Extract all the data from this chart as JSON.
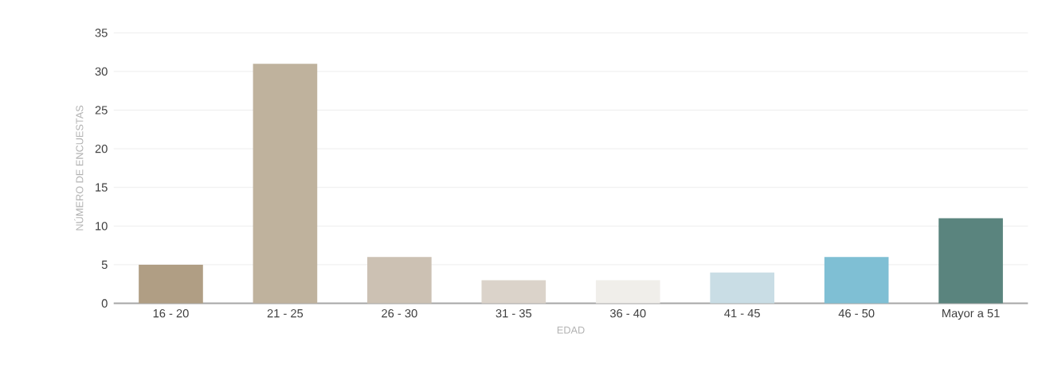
{
  "chart_data": {
    "type": "bar",
    "xlabel": "EDAD",
    "ylabel": "NÚMERO DE ENCUESTAS",
    "categories": [
      "16 - 20",
      "21 - 25",
      "26 - 30",
      "31 - 35",
      "36 - 40",
      "41 - 45",
      "46 - 50",
      "Mayor a 51"
    ],
    "values": [
      5,
      31,
      6,
      3,
      3,
      4,
      6,
      11
    ],
    "colors": [
      "#b09e84",
      "#bfb29d",
      "#ccc1b3",
      "#dbd3ca",
      "#f0eeea",
      "#c9dde5",
      "#7fbfd4",
      "#5a847e"
    ],
    "ylim": [
      0,
      35
    ],
    "yticks": [
      0,
      5,
      10,
      15,
      20,
      25,
      30,
      35
    ],
    "grid": "y"
  }
}
